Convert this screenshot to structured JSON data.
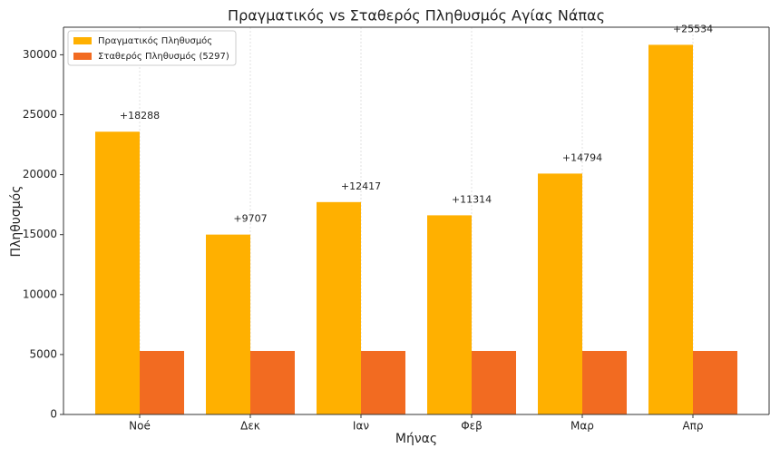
{
  "chart_data": {
    "type": "bar",
    "title": "Πραγματικός vs Σταθερός Πληθυσμός Αγίας Νάπας",
    "xlabel": "Μήνας",
    "ylabel": "Πληθυσμός",
    "categories": [
      "Noé",
      "Δεκ",
      "Ιαν",
      "Φεβ",
      "Μαρ",
      "Απρ"
    ],
    "series": [
      {
        "name": "Πραγματικός Πληθυσμός",
        "color": "#ffb000",
        "values": [
          23585,
          15004,
          17714,
          16611,
          20091,
          30831
        ]
      },
      {
        "name": "Σταθερός Πληθυσμός (5297)",
        "color": "#f26b21",
        "values": [
          5297,
          5297,
          5297,
          5297,
          5297,
          5297
        ]
      }
    ],
    "annotations": [
      "+18288",
      "+9707",
      "+12417",
      "+11314",
      "+14794",
      "+25534"
    ],
    "ylim": [
      0,
      32300
    ],
    "yticks": [
      0,
      5000,
      10000,
      15000,
      20000,
      25000,
      30000
    ],
    "grid": true,
    "legend": "upper left"
  }
}
